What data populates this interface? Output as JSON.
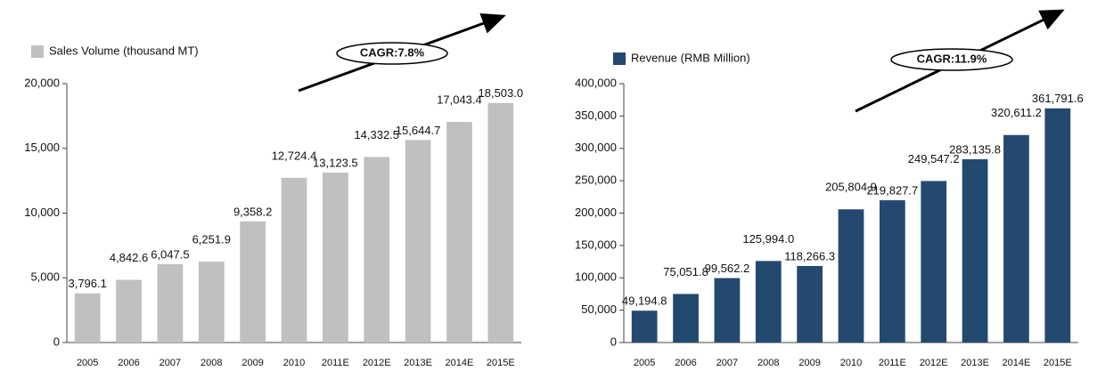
{
  "chart_data": [
    {
      "type": "bar",
      "annotation": "CAGR:7.8%",
      "categories": [
        "2005",
        "2006",
        "2007",
        "2008",
        "2009",
        "2010",
        "2011E",
        "2012E",
        "2013E",
        "2014E",
        "2015E"
      ],
      "series": [
        {
          "name": "Sales Volume (thousand MT)",
          "color": "#c0c0c0",
          "values": [
            3796.1,
            4842.6,
            6047.5,
            6251.9,
            9358.2,
            12724.4,
            13123.5,
            14332.5,
            15644.7,
            17043.4,
            18503.0
          ],
          "value_labels": [
            "3,796.1",
            "4,842.6",
            "6,047.5",
            "6,251.9",
            "9,358.2",
            "12,724.4",
            "13,123.5",
            "14,332.5",
            "15,644.7",
            "17,043.4",
            "18,503.0"
          ]
        }
      ],
      "ylim": [
        0,
        20000
      ],
      "yticks": [
        0,
        {
          "value": 5000,
          "label": "5,000"
        },
        {
          "value": 10000,
          "label": "10,000"
        },
        {
          "value": 15000,
          "label": "15,000"
        },
        {
          "value": 20000,
          "label": "20,000"
        }
      ],
      "grid": false
    },
    {
      "type": "bar",
      "annotation": "CAGR:11.9%",
      "categories": [
        "2005",
        "2006",
        "2007",
        "2008",
        "2009",
        "2010",
        "2011E",
        "2012E",
        "2013E",
        "2014E",
        "2015E"
      ],
      "series": [
        {
          "name": "Revenue (RMB Million)",
          "color": "#24496f",
          "values": [
            49194.8,
            75051.8,
            99562.2,
            125994.0,
            118266.3,
            205804.9,
            219827.7,
            249547.2,
            283135.8,
            320611.2,
            361791.6
          ],
          "value_labels": [
            "49,194.8",
            "75,051.8",
            "99,562.2",
            "125,994.0",
            "118,266.3",
            "205,804.9",
            "219,827.7",
            "249,547.2",
            "283,135.8",
            "320,611.2",
            "361,791.6"
          ]
        }
      ],
      "ylim": [
        0,
        400000
      ],
      "yticks": [
        0,
        {
          "value": 50000,
          "label": "50,000"
        },
        {
          "value": 100000,
          "label": "100,000"
        },
        {
          "value": 150000,
          "label": "150,000"
        },
        {
          "value": 200000,
          "label": "200,000"
        },
        {
          "value": 250000,
          "label": "250,000"
        },
        {
          "value": 300000,
          "label": "300,000"
        },
        {
          "value": 350000,
          "label": "350,000"
        },
        {
          "value": 400000,
          "label": "400,000"
        }
      ],
      "grid": false
    }
  ]
}
